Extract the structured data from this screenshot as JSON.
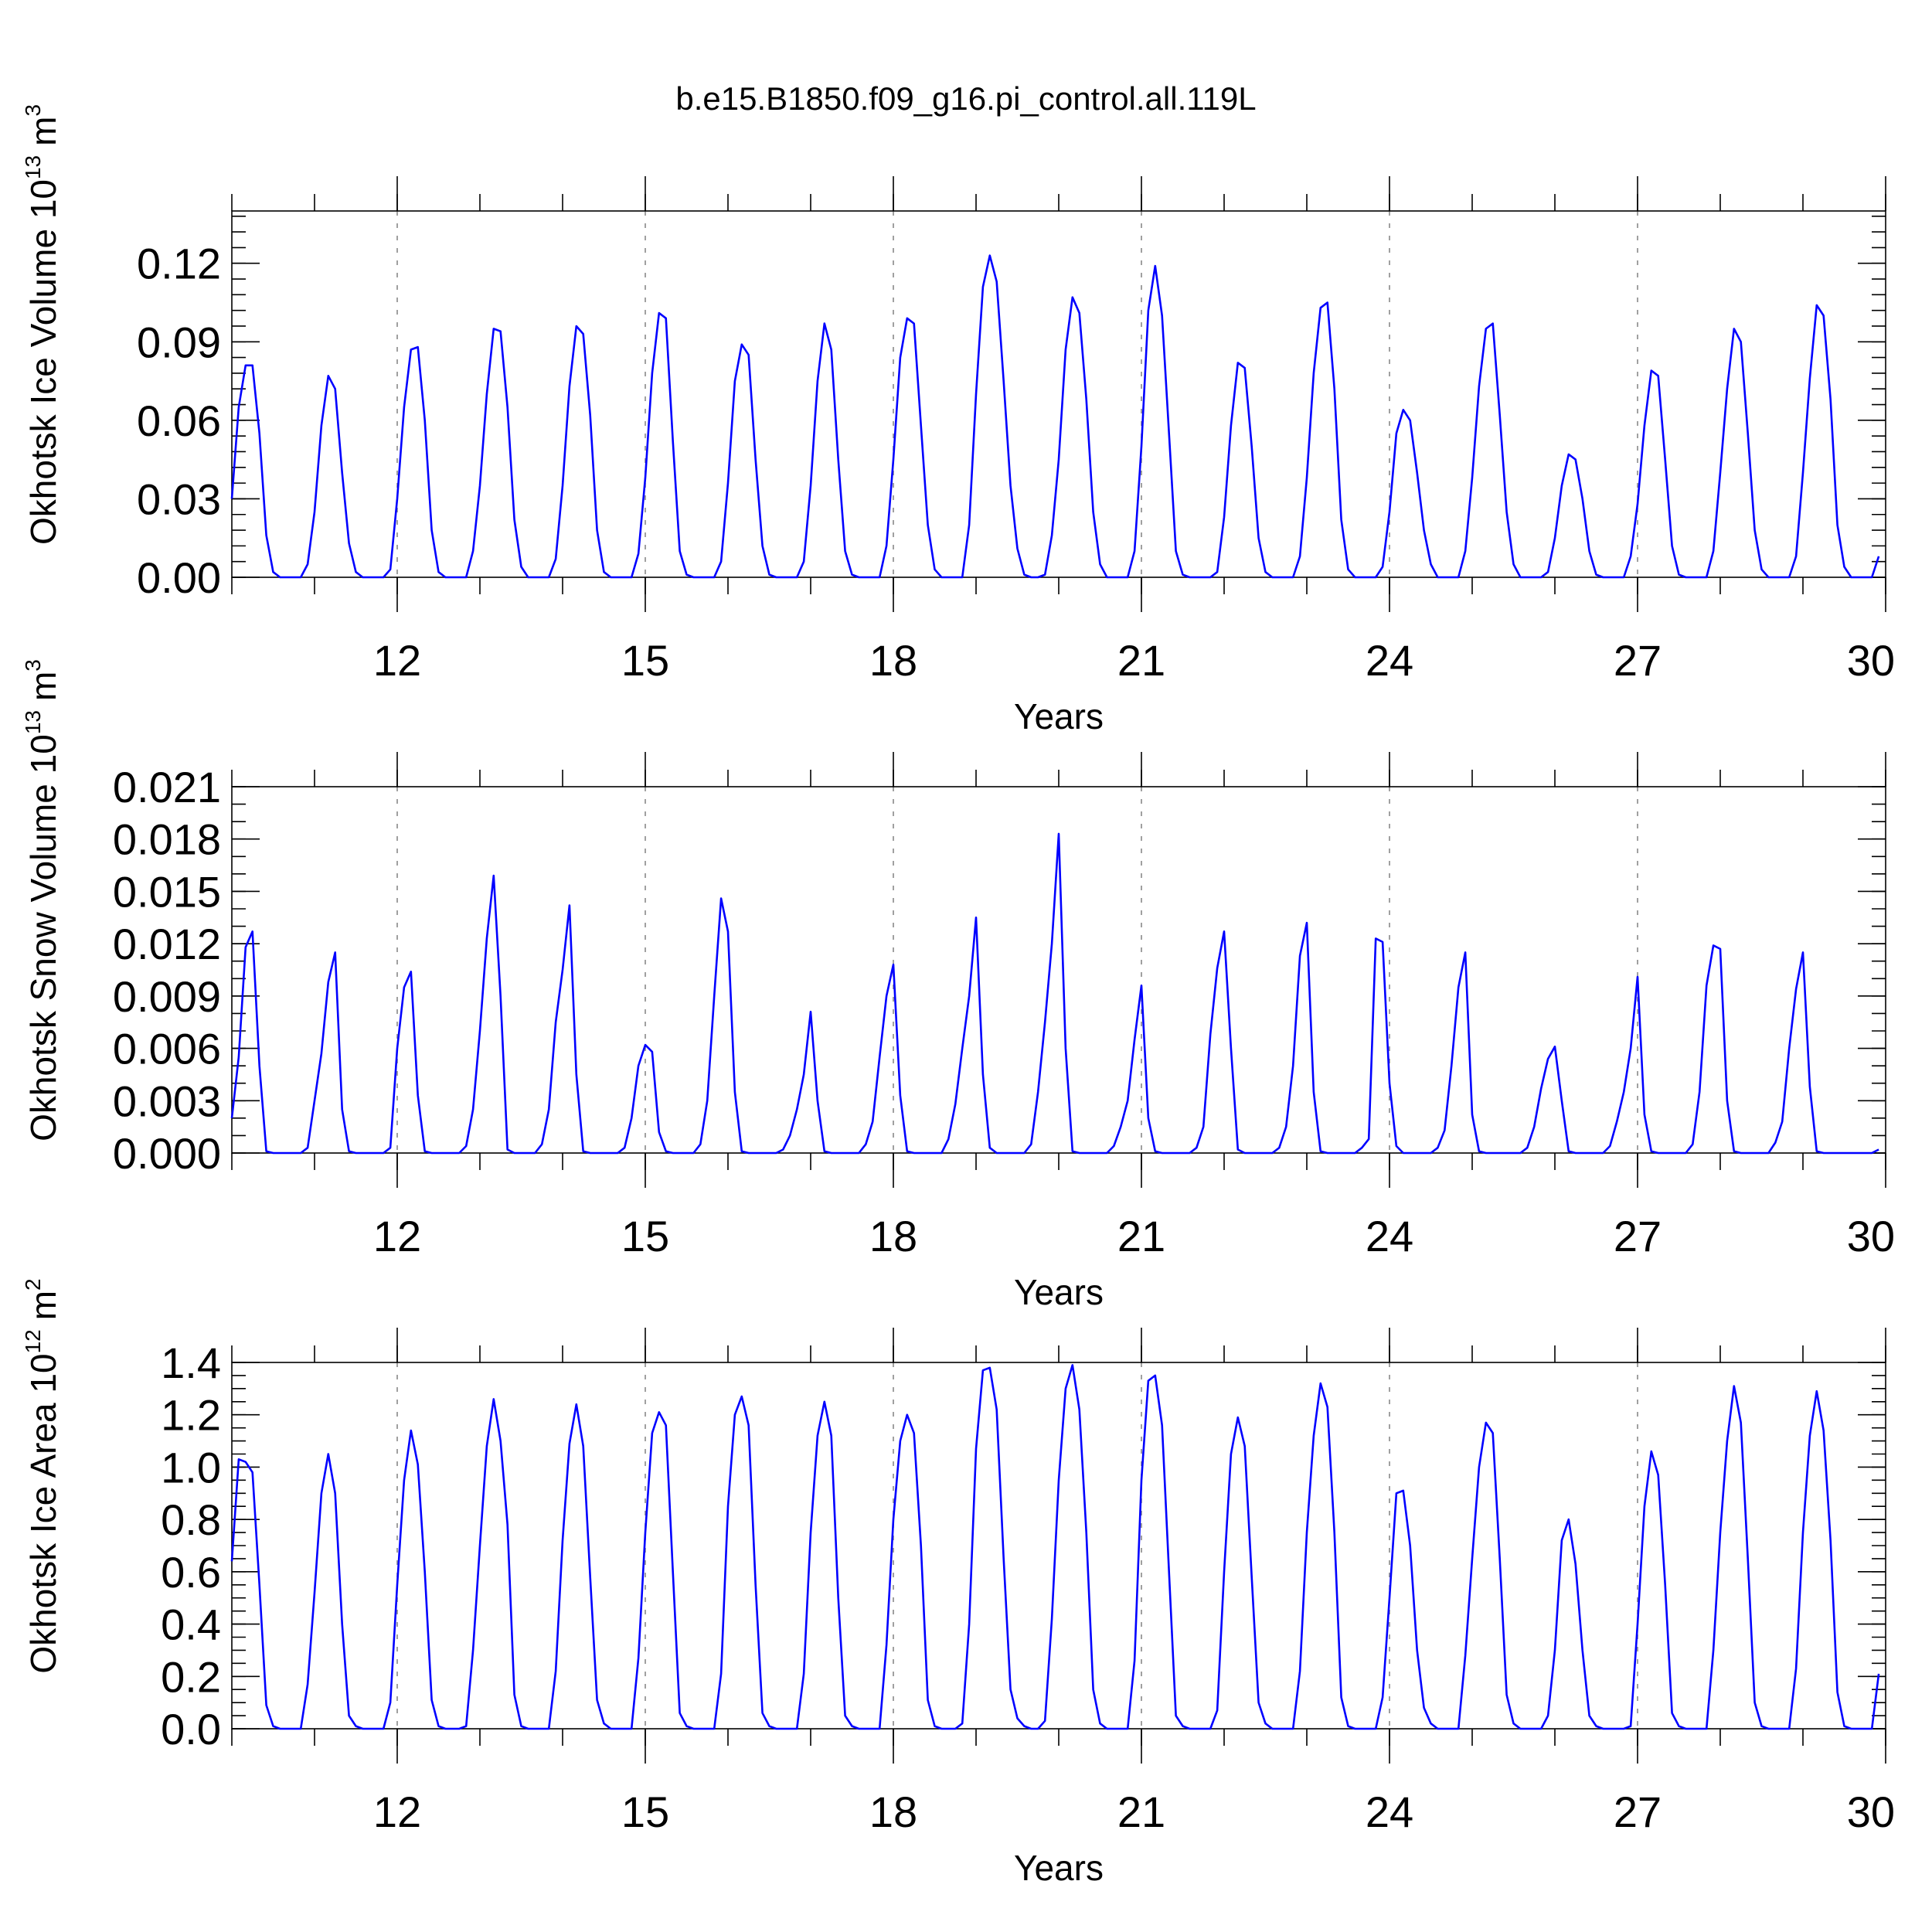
{
  "figure": {
    "title": "b.e15.B1850.f09_g16.pi_control.all.119L"
  },
  "style": {
    "line_color": "#0000ff",
    "axis_color": "#000000",
    "grid_color": "#888888"
  },
  "chart_data": [
    {
      "type": "line",
      "title": "",
      "xlabel": "Years",
      "ylabel": "Okhotsk Ice Volume 10",
      "ylabel_exponent": "13",
      "ylabel_unit": "m",
      "ylabel_unit_exponent": "3",
      "xlim": [
        10.0,
        30.0
      ],
      "ylim": [
        0.0,
        0.14
      ],
      "xticks": [
        12,
        15,
        18,
        21,
        24,
        27,
        30
      ],
      "xtick_labels": [
        "12",
        "15",
        "18",
        "21",
        "24",
        "27",
        "30"
      ],
      "yticks": [
        0.0,
        0.03,
        0.06,
        0.09,
        0.12
      ],
      "ytick_labels": [
        "0.00",
        "0.03",
        "0.06",
        "0.09",
        "0.12"
      ],
      "y_minor_step": 0.006,
      "x_minor_step": 1,
      "grid": "dashed vertical at major x ticks",
      "series": [
        {
          "color": "#0000ff",
          "x_start": 10.0,
          "x_step": 0.083333,
          "values": [
            0.03,
            0.065,
            0.081,
            0.081,
            0.055,
            0.016,
            0.002,
            0.0,
            0.0,
            0.0,
            0.0,
            0.005,
            0.025,
            0.058,
            0.077,
            0.072,
            0.04,
            0.013,
            0.002,
            0.0,
            0.0,
            0.0,
            0.0,
            0.003,
            0.03,
            0.065,
            0.087,
            0.088,
            0.06,
            0.018,
            0.002,
            0.0,
            0.0,
            0.0,
            0.0,
            0.01,
            0.035,
            0.07,
            0.095,
            0.094,
            0.065,
            0.022,
            0.004,
            0.0,
            0.0,
            0.0,
            0.0,
            0.007,
            0.035,
            0.073,
            0.096,
            0.093,
            0.062,
            0.018,
            0.002,
            0.0,
            0.0,
            0.0,
            0.0,
            0.009,
            0.038,
            0.078,
            0.101,
            0.099,
            0.052,
            0.01,
            0.001,
            0.0,
            0.0,
            0.0,
            0.0,
            0.006,
            0.036,
            0.075,
            0.089,
            0.085,
            0.045,
            0.012,
            0.001,
            0.0,
            0.0,
            0.0,
            0.0,
            0.006,
            0.035,
            0.075,
            0.097,
            0.087,
            0.045,
            0.01,
            0.001,
            0.0,
            0.0,
            0.0,
            0.0,
            0.012,
            0.045,
            0.084,
            0.099,
            0.097,
            0.058,
            0.02,
            0.003,
            0.0,
            0.0,
            0.0,
            0.0,
            0.02,
            0.07,
            0.111,
            0.123,
            0.113,
            0.075,
            0.035,
            0.011,
            0.001,
            0.0,
            0.0,
            0.001,
            0.016,
            0.045,
            0.087,
            0.107,
            0.101,
            0.068,
            0.025,
            0.005,
            0.0,
            0.0,
            0.0,
            0.0,
            0.01,
            0.05,
            0.102,
            0.119,
            0.1,
            0.055,
            0.01,
            0.001,
            0.0,
            0.0,
            0.0,
            0.0,
            0.002,
            0.023,
            0.058,
            0.082,
            0.08,
            0.05,
            0.015,
            0.002,
            0.0,
            0.0,
            0.0,
            0.0,
            0.008,
            0.038,
            0.078,
            0.103,
            0.105,
            0.072,
            0.022,
            0.003,
            0.0,
            0.0,
            0.0,
            0.0,
            0.004,
            0.025,
            0.055,
            0.064,
            0.06,
            0.04,
            0.018,
            0.005,
            0.0,
            0.0,
            0.0,
            0.0,
            0.01,
            0.038,
            0.073,
            0.095,
            0.097,
            0.062,
            0.025,
            0.005,
            0.0,
            0.0,
            0.0,
            0.0,
            0.002,
            0.015,
            0.035,
            0.047,
            0.045,
            0.03,
            0.01,
            0.001,
            0.0,
            0.0,
            0.0,
            0.0,
            0.008,
            0.028,
            0.058,
            0.079,
            0.077,
            0.045,
            0.012,
            0.001,
            0.0,
            0.0,
            0.0,
            0.0,
            0.01,
            0.04,
            0.072,
            0.095,
            0.09,
            0.055,
            0.018,
            0.003,
            0.0,
            0.0,
            0.0,
            0.0,
            0.008,
            0.04,
            0.076,
            0.104,
            0.1,
            0.068,
            0.02,
            0.004,
            0.0,
            0.0,
            0.0,
            0.0,
            0.008
          ]
        }
      ]
    },
    {
      "type": "line",
      "title": "",
      "xlabel": "Years",
      "ylabel": "Okhotsk Snow Volume 10",
      "ylabel_exponent": "13",
      "ylabel_unit": "m",
      "ylabel_unit_exponent": "3",
      "xlim": [
        10.0,
        30.0
      ],
      "ylim": [
        0.0,
        0.021
      ],
      "xticks": [
        12,
        15,
        18,
        21,
        24,
        27,
        30
      ],
      "xtick_labels": [
        "12",
        "15",
        "18",
        "21",
        "24",
        "27",
        "30"
      ],
      "yticks": [
        0.0,
        0.003,
        0.006,
        0.009,
        0.012,
        0.015,
        0.018,
        0.021
      ],
      "ytick_labels": [
        "0.000",
        "0.003",
        "0.006",
        "0.009",
        "0.012",
        "0.015",
        "0.018",
        "0.021"
      ],
      "y_minor_step": 0.001,
      "x_minor_step": 1,
      "grid": "dashed vertical at major x ticks",
      "series": [
        {
          "color": "#0000ff",
          "x_start": 10.0,
          "x_step": 0.083333,
          "values": [
            0.002,
            0.0055,
            0.0118,
            0.0127,
            0.005,
            0.0001,
            0.0,
            0.0,
            0.0,
            0.0,
            0.0,
            0.0003,
            0.003,
            0.0057,
            0.0098,
            0.0115,
            0.0025,
            0.0001,
            0.0,
            0.0,
            0.0,
            0.0,
            0.0,
            0.0003,
            0.006,
            0.0095,
            0.0104,
            0.0033,
            0.0001,
            0.0,
            0.0,
            0.0,
            0.0,
            0.0,
            0.0004,
            0.0025,
            0.007,
            0.0123,
            0.0159,
            0.009,
            0.0002,
            0.0,
            0.0,
            0.0,
            0.0,
            0.0005,
            0.0025,
            0.0075,
            0.0105,
            0.0142,
            0.0045,
            0.0001,
            0.0,
            0.0,
            0.0,
            0.0,
            0.0,
            0.0003,
            0.002,
            0.005,
            0.0062,
            0.0058,
            0.0012,
            0.0001,
            0.0,
            0.0,
            0.0,
            0.0,
            0.0005,
            0.003,
            0.009,
            0.0146,
            0.0127,
            0.0035,
            0.0001,
            0.0,
            0.0,
            0.0,
            0.0,
            0.0,
            0.0002,
            0.001,
            0.0025,
            0.0045,
            0.0081,
            0.003,
            0.0001,
            0.0,
            0.0,
            0.0,
            0.0,
            0.0,
            0.0005,
            0.0018,
            0.0055,
            0.009,
            0.0108,
            0.0033,
            0.0001,
            0.0,
            0.0,
            0.0,
            0.0,
            0.0,
            0.0008,
            0.0028,
            0.006,
            0.009,
            0.0135,
            0.0045,
            0.0003,
            0.0,
            0.0,
            0.0,
            0.0,
            0.0,
            0.0005,
            0.0035,
            0.0075,
            0.012,
            0.0183,
            0.006,
            0.0001,
            0.0,
            0.0,
            0.0,
            0.0,
            0.0,
            0.0004,
            0.0015,
            0.003,
            0.0065,
            0.0096,
            0.002,
            0.0001,
            0.0,
            0.0,
            0.0,
            0.0,
            0.0,
            0.0003,
            0.0015,
            0.0068,
            0.0106,
            0.0127,
            0.006,
            0.0002,
            0.0,
            0.0,
            0.0,
            0.0,
            0.0,
            0.0003,
            0.0015,
            0.005,
            0.0113,
            0.0132,
            0.0035,
            0.0001,
            0.0,
            0.0,
            0.0,
            0.0,
            0.0,
            0.0003,
            0.0008,
            0.0123,
            0.0121,
            0.004,
            0.0004,
            0.0,
            0.0,
            0.0,
            0.0,
            0.0,
            0.0003,
            0.0013,
            0.005,
            0.0095,
            0.0115,
            0.0022,
            0.0001,
            0.0,
            0.0,
            0.0,
            0.0,
            0.0,
            0.0,
            0.0003,
            0.0015,
            0.0037,
            0.0054,
            0.0061,
            0.003,
            0.0001,
            0.0,
            0.0,
            0.0,
            0.0,
            0.0,
            0.0004,
            0.0018,
            0.0035,
            0.006,
            0.0101,
            0.0022,
            0.0001,
            0.0,
            0.0,
            0.0,
            0.0,
            0.0,
            0.0005,
            0.0035,
            0.0096,
            0.0119,
            0.0117,
            0.003,
            0.0001,
            0.0,
            0.0,
            0.0,
            0.0,
            0.0,
            0.0006,
            0.0018,
            0.006,
            0.0094,
            0.0115,
            0.0038,
            0.0001,
            0.0,
            0.0,
            0.0,
            0.0,
            0.0,
            0.0,
            0.0,
            0.0,
            0.0002
          ]
        }
      ]
    },
    {
      "type": "line",
      "title": "",
      "xlabel": "Years",
      "ylabel": "Okhotsk Ice Area 10",
      "ylabel_exponent": "12",
      "ylabel_unit": "m",
      "ylabel_unit_exponent": "2",
      "xlim": [
        10.0,
        30.0
      ],
      "ylim": [
        0.0,
        1.4
      ],
      "xticks": [
        12,
        15,
        18,
        21,
        24,
        27,
        30
      ],
      "xtick_labels": [
        "12",
        "15",
        "18",
        "21",
        "24",
        "27",
        "30"
      ],
      "yticks": [
        0.0,
        0.2,
        0.4,
        0.6,
        0.8,
        1.0,
        1.2,
        1.4
      ],
      "ytick_labels": [
        "0.0",
        "0.2",
        "0.4",
        "0.6",
        "0.8",
        "1.0",
        "1.2",
        "1.4"
      ],
      "y_minor_step": 0.05,
      "x_minor_step": 1,
      "grid": "dashed vertical at major x ticks",
      "series": [
        {
          "color": "#0000ff",
          "x_start": 10.0,
          "x_step": 0.083333,
          "values": [
            0.64,
            1.03,
            1.02,
            0.98,
            0.55,
            0.09,
            0.01,
            0.0,
            0.0,
            0.0,
            0.0,
            0.17,
            0.52,
            0.9,
            1.05,
            0.9,
            0.4,
            0.05,
            0.01,
            0.0,
            0.0,
            0.0,
            0.0,
            0.1,
            0.55,
            0.95,
            1.14,
            1.01,
            0.6,
            0.11,
            0.01,
            0.0,
            0.0,
            0.0,
            0.01,
            0.3,
            0.7,
            1.08,
            1.26,
            1.1,
            0.78,
            0.13,
            0.01,
            0.0,
            0.0,
            0.0,
            0.0,
            0.22,
            0.72,
            1.09,
            1.24,
            1.08,
            0.58,
            0.11,
            0.02,
            0.0,
            0.0,
            0.0,
            0.0,
            0.27,
            0.75,
            1.13,
            1.21,
            1.16,
            0.6,
            0.06,
            0.01,
            0.0,
            0.0,
            0.0,
            0.0,
            0.21,
            0.85,
            1.2,
            1.27,
            1.16,
            0.55,
            0.06,
            0.01,
            0.0,
            0.0,
            0.0,
            0.0,
            0.21,
            0.75,
            1.12,
            1.25,
            1.12,
            0.5,
            0.05,
            0.01,
            0.0,
            0.0,
            0.0,
            0.0,
            0.32,
            0.8,
            1.1,
            1.2,
            1.13,
            0.7,
            0.11,
            0.01,
            0.0,
            0.0,
            0.0,
            0.02,
            0.4,
            1.07,
            1.37,
            1.38,
            1.22,
            0.65,
            0.15,
            0.04,
            0.01,
            0.0,
            0.0,
            0.03,
            0.42,
            0.95,
            1.3,
            1.39,
            1.22,
            0.75,
            0.15,
            0.02,
            0.0,
            0.0,
            0.0,
            0.0,
            0.26,
            0.95,
            1.33,
            1.35,
            1.16,
            0.6,
            0.05,
            0.01,
            0.0,
            0.0,
            0.0,
            0.0,
            0.07,
            0.6,
            1.05,
            1.19,
            1.08,
            0.58,
            0.1,
            0.02,
            0.0,
            0.0,
            0.0,
            0.0,
            0.22,
            0.75,
            1.12,
            1.32,
            1.23,
            0.75,
            0.12,
            0.01,
            0.0,
            0.0,
            0.0,
            0.0,
            0.12,
            0.5,
            0.9,
            0.91,
            0.7,
            0.3,
            0.08,
            0.02,
            0.0,
            0.0,
            0.0,
            0.0,
            0.28,
            0.65,
            1.0,
            1.17,
            1.13,
            0.65,
            0.13,
            0.02,
            0.0,
            0.0,
            0.0,
            0.0,
            0.05,
            0.3,
            0.72,
            0.8,
            0.63,
            0.3,
            0.05,
            0.01,
            0.0,
            0.0,
            0.0,
            0.0,
            0.01,
            0.4,
            0.85,
            1.06,
            0.97,
            0.55,
            0.06,
            0.01,
            0.0,
            0.0,
            0.0,
            0.0,
            0.3,
            0.75,
            1.1,
            1.31,
            1.17,
            0.65,
            0.1,
            0.01,
            0.0,
            0.0,
            0.0,
            0.0,
            0.23,
            0.75,
            1.12,
            1.29,
            1.14,
            0.72,
            0.14,
            0.01,
            0.0,
            0.0,
            0.0,
            0.0,
            0.21
          ]
        }
      ]
    }
  ]
}
